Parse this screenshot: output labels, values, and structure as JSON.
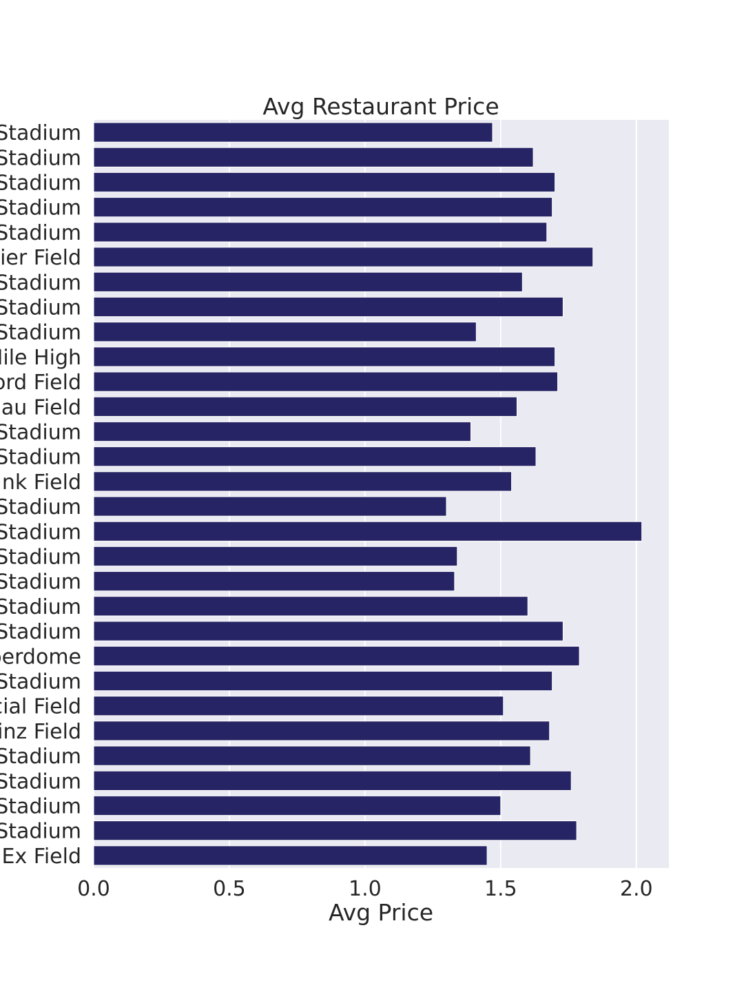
{
  "chart_data": {
    "type": "bar",
    "orientation": "horizontal",
    "title": "Avg Restaurant Price",
    "xlabel": "Avg Price",
    "ylabel": "",
    "xlim": [
      0,
      2.12
    ],
    "xticks": [
      "0.0",
      "0.5",
      "1.0",
      "1.5",
      "2.0"
    ],
    "xtick_values": [
      0,
      0.5,
      1.0,
      1.5,
      2.0
    ],
    "grid": true,
    "categories": [
      "Stadium",
      "Stadium",
      "Stadium",
      "Stadium",
      "Stadium",
      "ier Field",
      "Stadium",
      "Stadium",
      "Stadium",
      "Mile High",
      "ord Field",
      "au Field",
      "Stadium",
      "Stadium",
      "nk Field",
      "Stadium",
      "Stadium",
      "Stadium",
      "Stadium",
      "Stadium",
      "Stadium",
      "perdome",
      "Stadium",
      "cial Field",
      "inz Field",
      "Stadium",
      "Stadium",
      "Stadium",
      "Stadium",
      "Ex Field"
    ],
    "values": [
      1.47,
      1.62,
      1.7,
      1.69,
      1.67,
      1.84,
      1.58,
      1.73,
      1.41,
      1.7,
      1.71,
      1.56,
      1.39,
      1.63,
      1.54,
      1.3,
      2.02,
      1.34,
      1.33,
      1.6,
      1.73,
      1.79,
      1.69,
      1.51,
      1.68,
      1.61,
      1.76,
      1.5,
      1.78,
      1.45
    ],
    "colors": {
      "bar": "#262465",
      "plot_background": "#eaeaf2",
      "grid": "#ffffff",
      "text": "#262626"
    }
  }
}
